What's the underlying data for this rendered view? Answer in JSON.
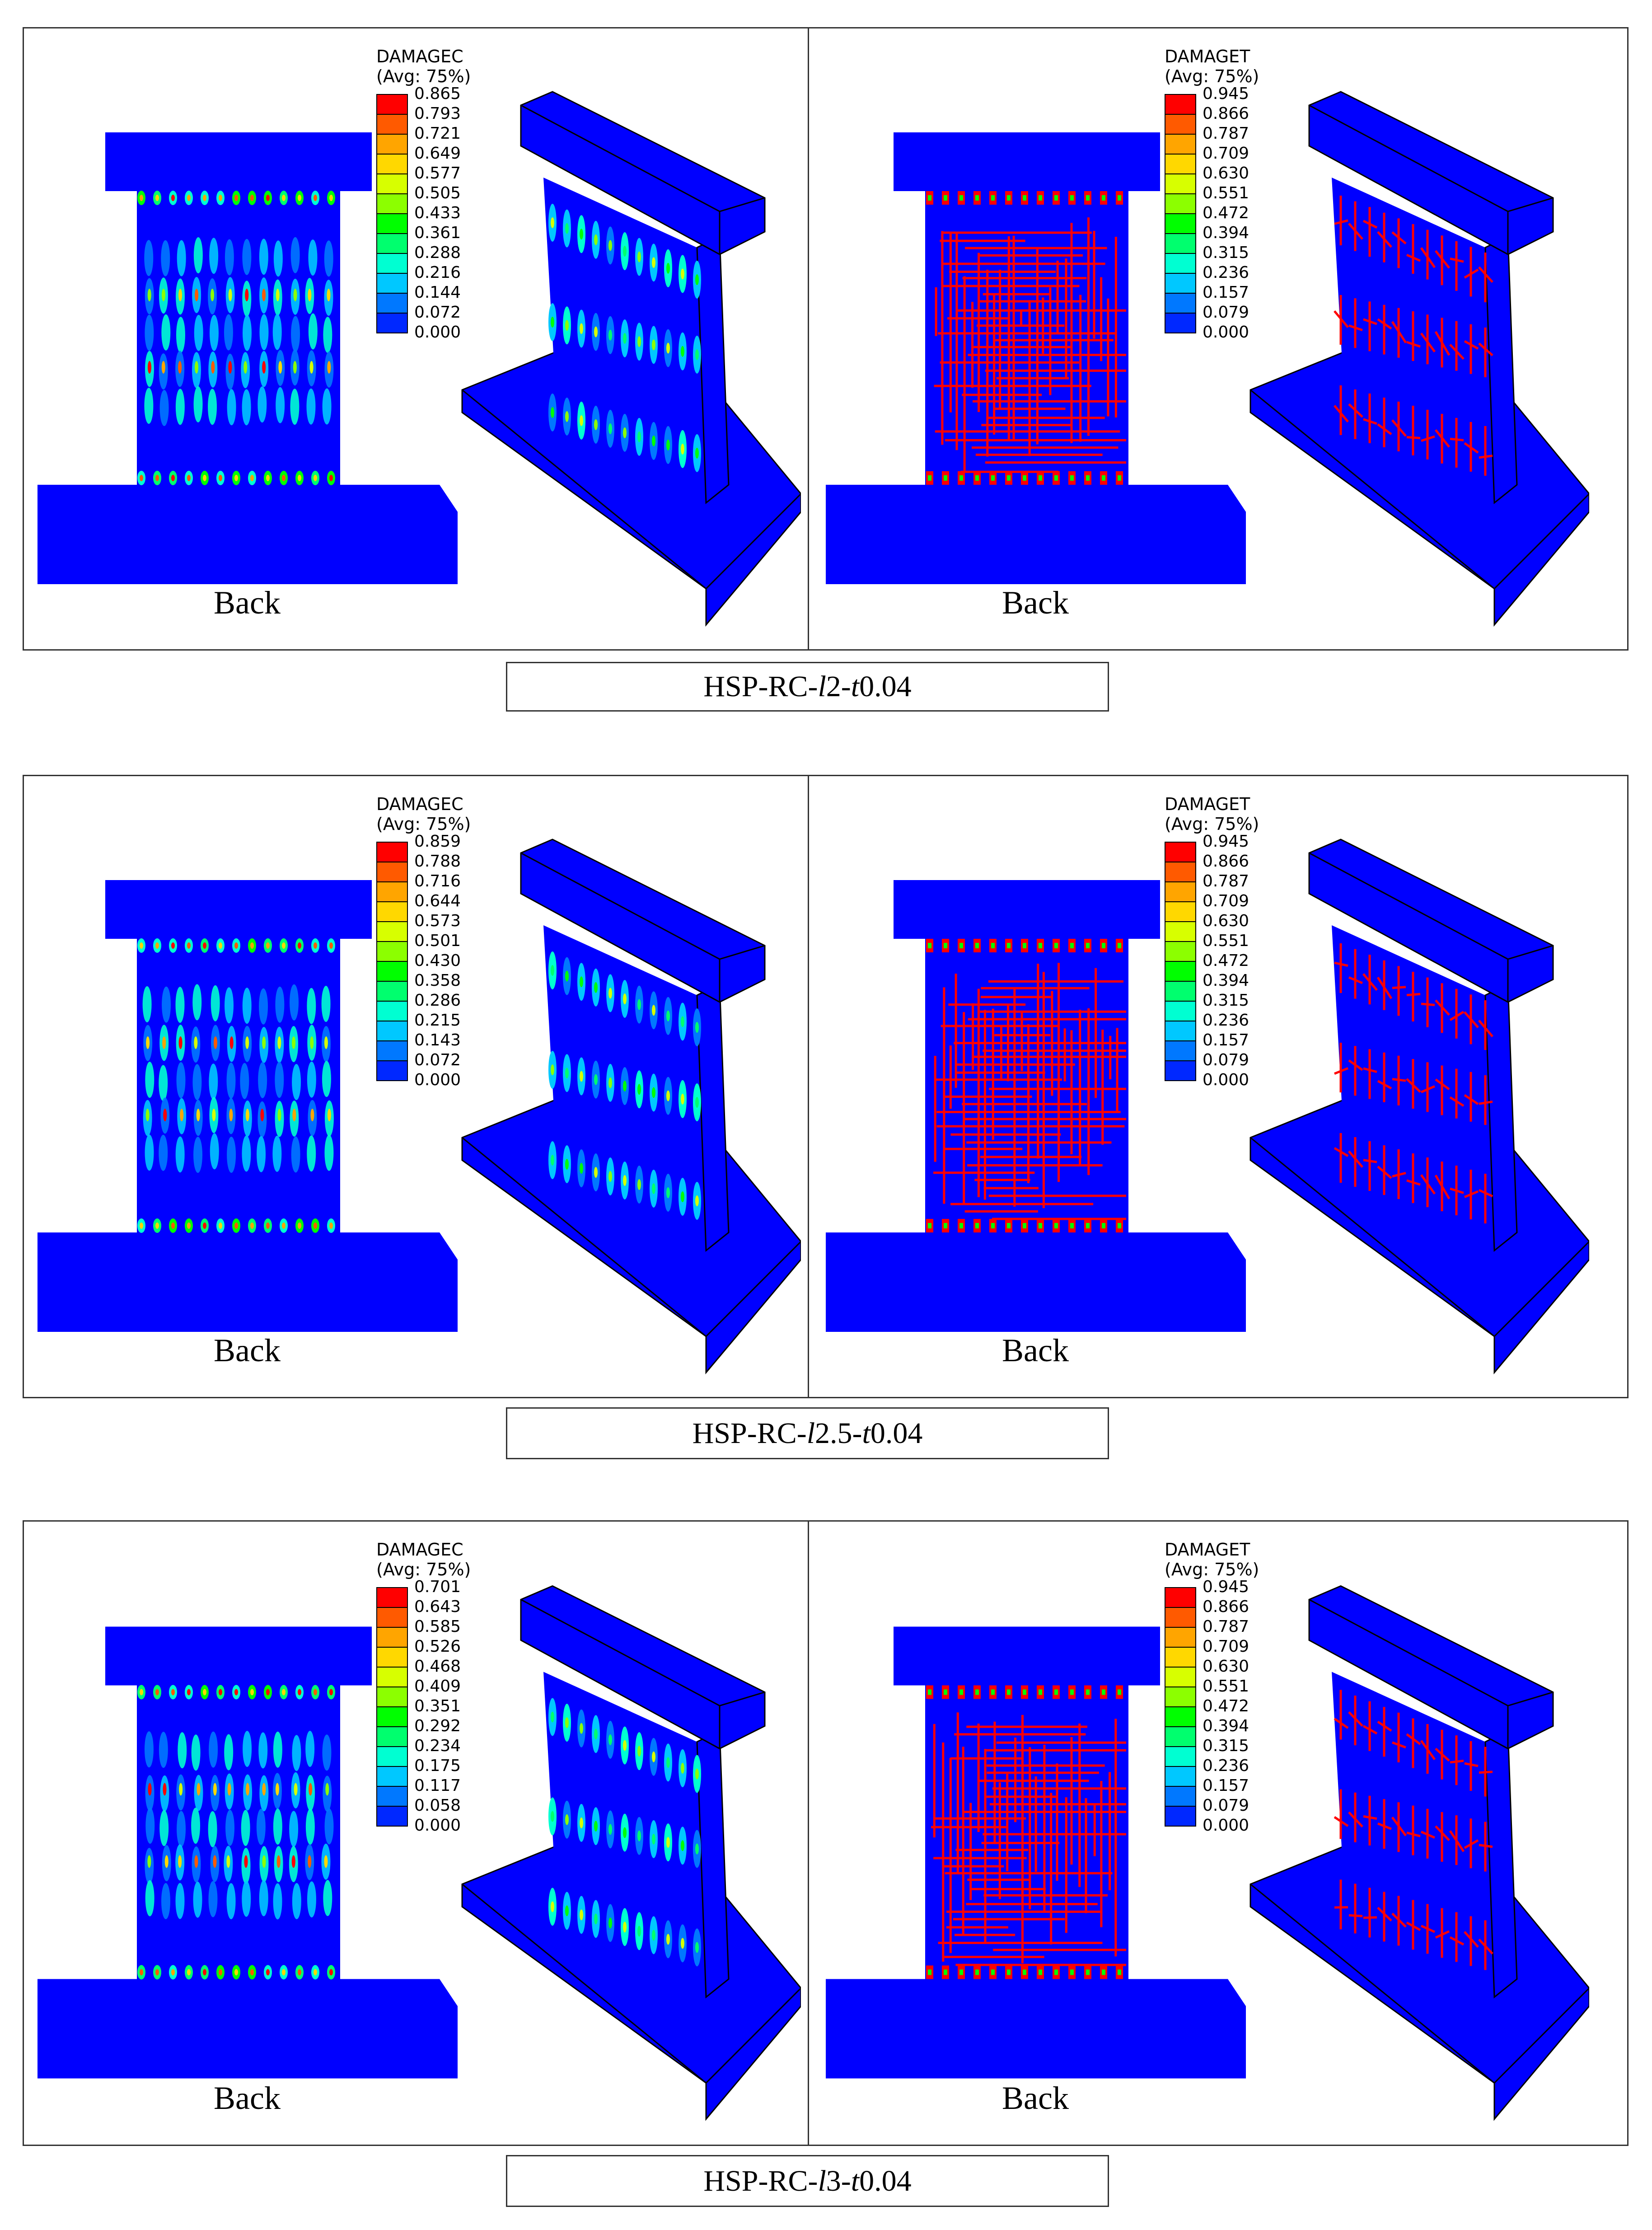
{
  "figure": {
    "rows": [
      {
        "caption": {
          "prefix": "HSP-RC-",
          "l_letter": "l",
          "l_value": "2",
          "dash": "-",
          "t_letter": "t",
          "t_value": "0.04"
        },
        "left": {
          "legend_title": "DAMAGEC",
          "legend_sub": "(Avg: 75%)",
          "values": [
            "0.865",
            "0.793",
            "0.721",
            "0.649",
            "0.577",
            "0.505",
            "0.433",
            "0.361",
            "0.288",
            "0.216",
            "0.144",
            "0.072",
            "0.000"
          ],
          "back_label": "Back"
        },
        "right": {
          "legend_title": "DAMAGET",
          "legend_sub": "(Avg: 75%)",
          "values": [
            "0.945",
            "0.866",
            "0.787",
            "0.709",
            "0.630",
            "0.551",
            "0.472",
            "0.394",
            "0.315",
            "0.236",
            "0.157",
            "0.079",
            "0.000"
          ],
          "back_label": "Back"
        }
      },
      {
        "caption": {
          "prefix": "HSP-RC-",
          "l_letter": "l",
          "l_value": "2.5",
          "dash": "-",
          "t_letter": "t",
          "t_value": "0.04"
        },
        "left": {
          "legend_title": "DAMAGEC",
          "legend_sub": "(Avg: 75%)",
          "values": [
            "0.859",
            "0.788",
            "0.716",
            "0.644",
            "0.573",
            "0.501",
            "0.430",
            "0.358",
            "0.286",
            "0.215",
            "0.143",
            "0.072",
            "0.000"
          ],
          "back_label": "Back"
        },
        "right": {
          "legend_title": "DAMAGET",
          "legend_sub": "(Avg: 75%)",
          "values": [
            "0.945",
            "0.866",
            "0.787",
            "0.709",
            "0.630",
            "0.551",
            "0.472",
            "0.394",
            "0.315",
            "0.236",
            "0.157",
            "0.079",
            "0.000"
          ],
          "back_label": "Back"
        }
      },
      {
        "caption": {
          "prefix": "HSP-RC-",
          "l_letter": "l",
          "l_value": "3",
          "dash": "-",
          "t_letter": "t",
          "t_value": "0.04"
        },
        "left": {
          "legend_title": "DAMAGEC",
          "legend_sub": "(Avg: 75%)",
          "values": [
            "0.701",
            "0.643",
            "0.585",
            "0.526",
            "0.468",
            "0.409",
            "0.351",
            "0.292",
            "0.234",
            "0.175",
            "0.117",
            "0.058",
            "0.000"
          ],
          "back_label": "Back"
        },
        "right": {
          "legend_title": "DAMAGET",
          "legend_sub": "(Avg: 75%)",
          "values": [
            "0.945",
            "0.866",
            "0.787",
            "0.709",
            "0.630",
            "0.551",
            "0.472",
            "0.394",
            "0.315",
            "0.236",
            "0.157",
            "0.079",
            "0.000"
          ],
          "back_label": "Back"
        }
      }
    ],
    "contour_colors": [
      "#ff0000",
      "#ff5a00",
      "#ffa500",
      "#ffd800",
      "#d7ff00",
      "#8cff00",
      "#00ff00",
      "#00ff6e",
      "#00ffd2",
      "#00c8ff",
      "#0078ff",
      "#0028ff"
    ],
    "model_color": "#0000ff"
  }
}
